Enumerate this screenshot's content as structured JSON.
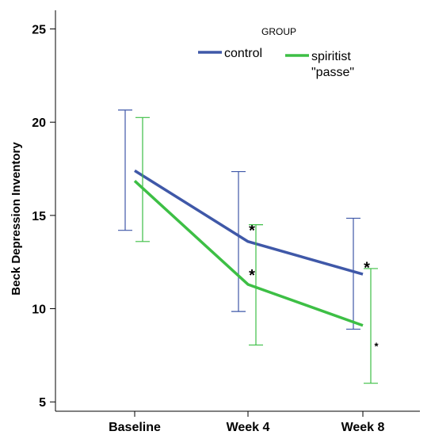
{
  "chart_data": {
    "type": "line",
    "categories": [
      "Baseline",
      "Week 4",
      "Week 8"
    ],
    "ylabel": "Beck Depression Inventory",
    "xlabel": "",
    "ylim": [
      4.5,
      26
    ],
    "yticks": [
      5,
      10,
      15,
      20,
      25
    ],
    "grid": false,
    "legend": {
      "title": "GROUP",
      "placement": "top-right"
    },
    "series": [
      {
        "name": "control",
        "color": "#3f58a8",
        "values": [
          17.4,
          13.6,
          11.85
        ],
        "error_low": [
          14.2,
          9.85,
          8.9
        ],
        "error_high": [
          20.65,
          17.35,
          14.85
        ],
        "significance": [
          "",
          "*",
          "*"
        ]
      },
      {
        "name": "spiritist \"passe\"",
        "color": "#3dbf45",
        "values": [
          16.85,
          11.3,
          9.1
        ],
        "error_low": [
          13.6,
          8.05,
          6.0
        ],
        "error_high": [
          20.25,
          14.5,
          12.15
        ],
        "significance": [
          "",
          "*",
          "*"
        ]
      }
    ]
  }
}
